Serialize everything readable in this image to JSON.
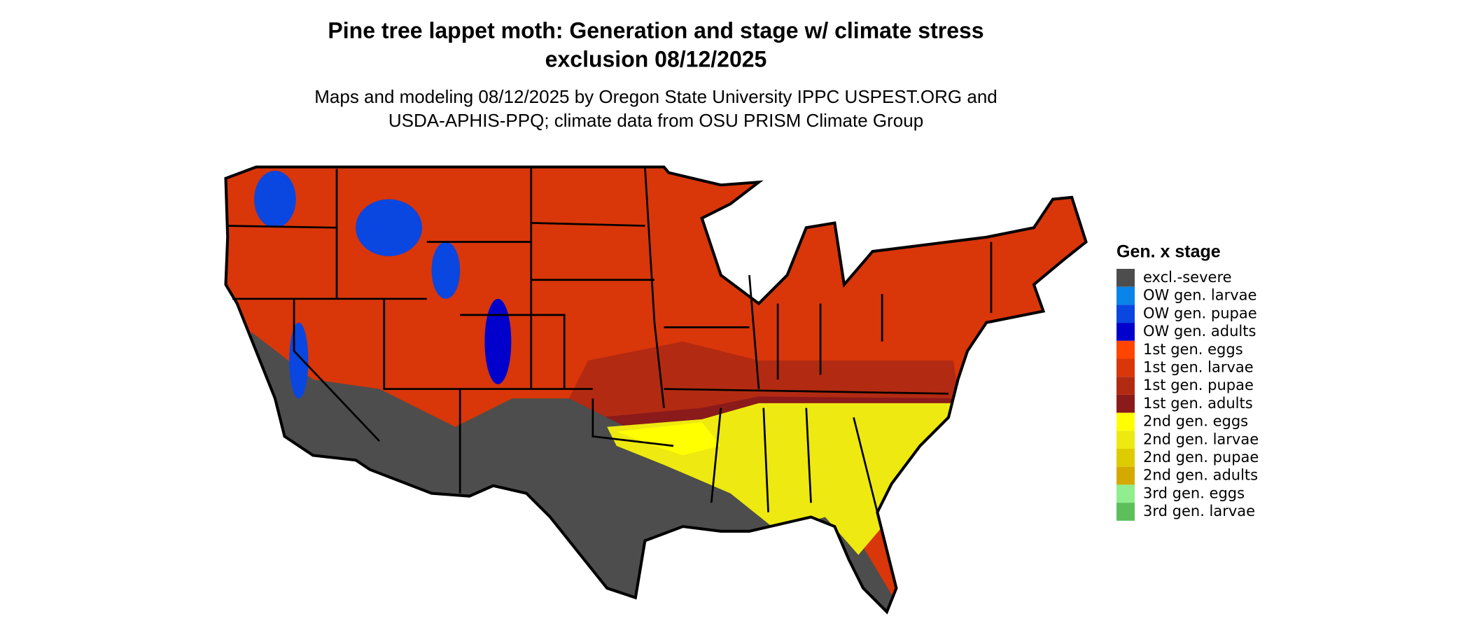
{
  "header": {
    "title_lines": [
      "Pine tree lappet moth: Generation and stage w/ climate stress",
      "exclusion 08/12/2025"
    ],
    "subtitle_lines": [
      "Maps and modeling 08/12/2025 by Oregon State University IPPC USPEST.ORG and",
      "USDA-APHIS-PPQ; climate data from OSU PRISM Climate Group"
    ]
  },
  "legend": {
    "title": "Gen. x stage",
    "items": [
      {
        "label": "excl.-severe",
        "color": "#4d4d4d"
      },
      {
        "label": "OW gen. larvae",
        "color": "#0a84e8"
      },
      {
        "label": "OW gen. pupae",
        "color": "#0a46e0"
      },
      {
        "label": "OW gen. adults",
        "color": "#0000cc"
      },
      {
        "label": "1st gen. eggs",
        "color": "#ff4500"
      },
      {
        "label": "1st gen. larvae",
        "color": "#d9360a"
      },
      {
        "label": "1st gen. pupae",
        "color": "#b32a12"
      },
      {
        "label": "1st gen. adults",
        "color": "#8b1a1a"
      },
      {
        "label": "2nd gen. eggs",
        "color": "#ffff00"
      },
      {
        "label": "2nd gen. larvae",
        "color": "#eee910"
      },
      {
        "label": "2nd gen. pupae",
        "color": "#ddcc00"
      },
      {
        "label": "2nd gen. adults",
        "color": "#d4aa00"
      },
      {
        "label": "3rd gen. eggs",
        "color": "#90ee90"
      },
      {
        "label": "3rd gen. larvae",
        "color": "#5cbf5c"
      }
    ]
  }
}
